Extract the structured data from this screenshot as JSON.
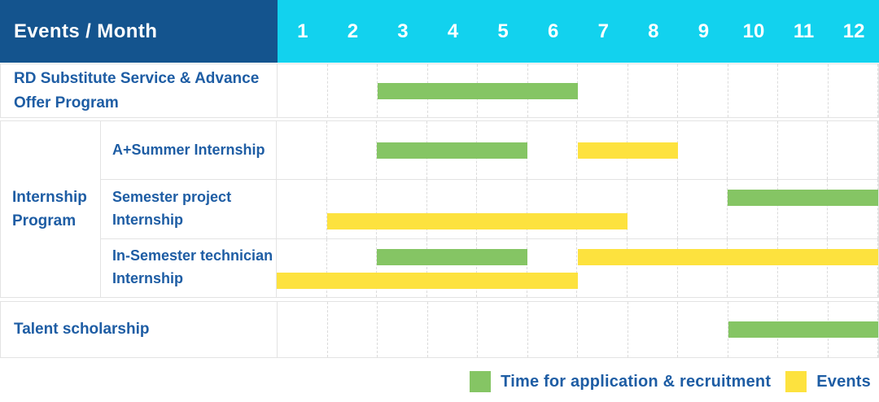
{
  "header": {
    "title": "Events / Month",
    "months": [
      "1",
      "2",
      "3",
      "4",
      "5",
      "6",
      "7",
      "8",
      "9",
      "10",
      "11",
      "12"
    ]
  },
  "colors": {
    "header_bg": "#14548e",
    "month_header_bg": "#12d2ee",
    "header_text": "#ffffff",
    "label_text": "#1e5da4",
    "green": "#85c564",
    "yellow": "#fde23e",
    "grid_line": "#e3e3e3"
  },
  "legend": {
    "items": [
      {
        "color": "#85c564",
        "label": "Time for application & recruitment"
      },
      {
        "color": "#fde23e",
        "label": "Events"
      }
    ]
  },
  "chart_data": {
    "type": "bar",
    "variant": "gantt",
    "title": "Events / Month",
    "x": {
      "label": "Month",
      "ticks": [
        1,
        2,
        3,
        4,
        5,
        6,
        7,
        8,
        9,
        10,
        11,
        12
      ],
      "range": [
        1,
        12
      ]
    },
    "series_colors": {
      "Time for application & recruitment": "#85c564",
      "Events": "#fde23e"
    },
    "rows": [
      {
        "group": "",
        "label": "RD Substitute Service & Advance Offer Program",
        "bars": [
          {
            "series": "Time for application & recruitment",
            "start_month": 3,
            "end_month": 6,
            "lane": "center"
          }
        ]
      },
      {
        "group": "Internship Program",
        "label": "A+Summer Internship",
        "bars": [
          {
            "series": "Time for application & recruitment",
            "start_month": 3,
            "end_month": 5,
            "lane": "center"
          },
          {
            "series": "Events",
            "start_month": 7,
            "end_month": 8,
            "lane": "center"
          }
        ]
      },
      {
        "group": "Internship Program",
        "label": "Semester project Internship",
        "bars": [
          {
            "series": "Time for application & recruitment",
            "start_month": 10,
            "end_month": 12,
            "lane": "top"
          },
          {
            "series": "Events",
            "start_month": 2,
            "end_month": 7,
            "lane": "bottom"
          }
        ]
      },
      {
        "group": "Internship Program",
        "label": "In-Semester technician Internship",
        "bars": [
          {
            "series": "Time for application & recruitment",
            "start_month": 3,
            "end_month": 5,
            "lane": "top"
          },
          {
            "series": "Events",
            "start_month": 7,
            "end_month": 12,
            "lane": "top"
          },
          {
            "series": "Events",
            "start_month": 1,
            "end_month": 6,
            "lane": "bottom"
          }
        ]
      },
      {
        "group": "",
        "label": "Talent scholarship",
        "bars": [
          {
            "series": "Time for application & recruitment",
            "start_month": 10,
            "end_month": 12,
            "lane": "center"
          }
        ]
      }
    ],
    "legend_entries": [
      "Time for application & recruitment",
      "Events"
    ]
  }
}
